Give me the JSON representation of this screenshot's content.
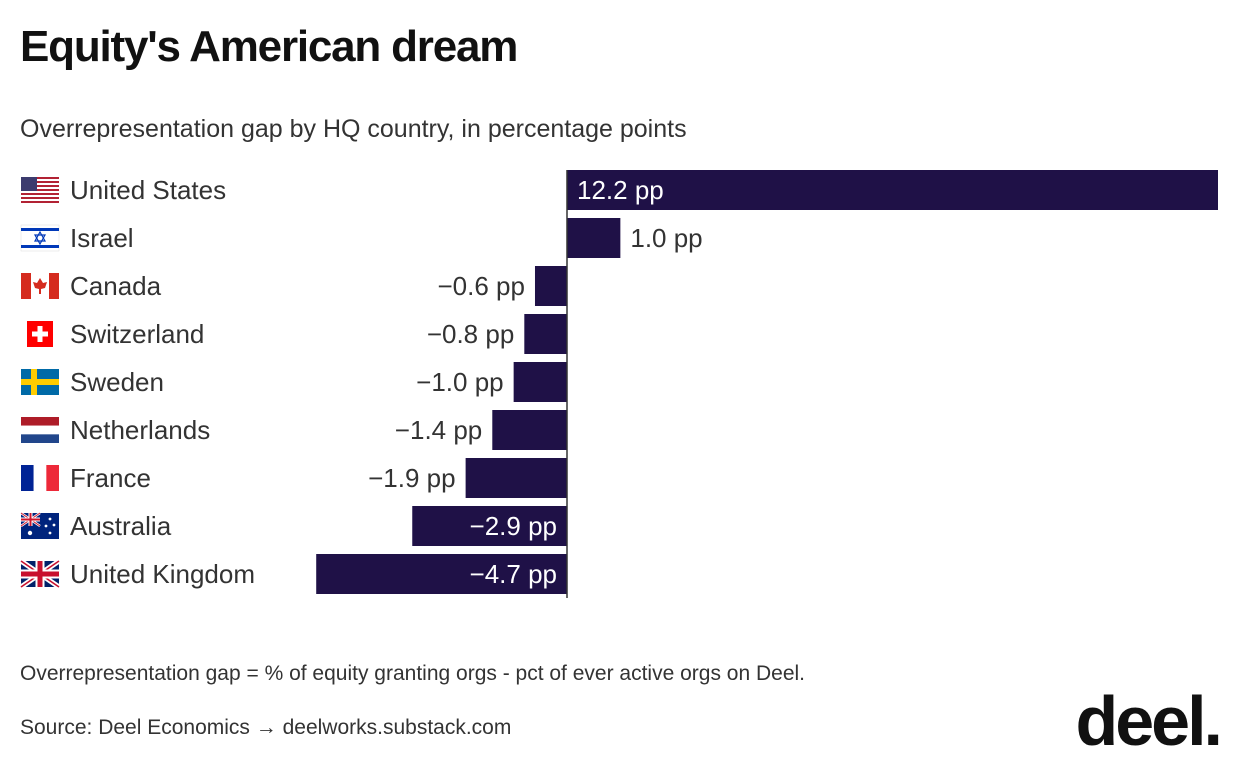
{
  "header": {
    "title": "Equity's American dream",
    "subtitle": "Overrepresentation gap by HQ country, in percentage points"
  },
  "footer": {
    "note": "Overrepresentation gap = % of equity granting orgs - pct of ever active orgs on Deel.",
    "source": "Source: Deel Economics → deelworks.substack.com",
    "logo": "deel."
  },
  "colors": {
    "bar": "#1f1147",
    "text": "#333333",
    "axis": "#333333"
  },
  "chart_data": {
    "type": "bar",
    "orientation": "horizontal",
    "title": "Equity's American dream",
    "subtitle": "Overrepresentation gap by HQ country, in percentage points",
    "categories": [
      "United States",
      "Israel",
      "Canada",
      "Switzerland",
      "Sweden",
      "Netherlands",
      "France",
      "Australia",
      "United Kingdom"
    ],
    "values": [
      12.2,
      1.0,
      -0.6,
      -0.8,
      -1.0,
      -1.4,
      -1.9,
      -2.9,
      -4.7
    ],
    "value_labels": [
      "12.2 pp",
      "1.0 pp",
      "−0.6 pp",
      "−0.8 pp",
      "−1.0 pp",
      "−1.4 pp",
      "−1.9 pp",
      "−2.9 pp",
      "−4.7 pp"
    ],
    "flags": [
      "us-flag-icon",
      "israel-flag-icon",
      "canada-flag-icon",
      "switzerland-flag-icon",
      "sweden-flag-icon",
      "netherlands-flag-icon",
      "france-flag-icon",
      "australia-flag-icon",
      "uk-flag-icon"
    ],
    "xlim": [
      -4.7,
      12.2
    ],
    "grid": false,
    "legend": "none"
  }
}
